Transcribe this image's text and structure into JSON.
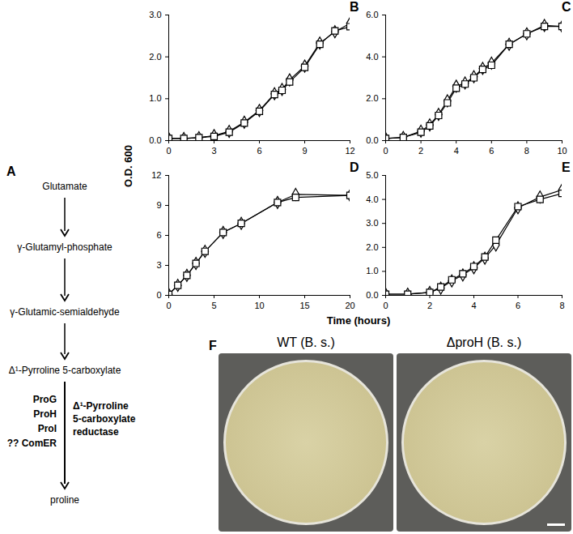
{
  "chart_data": [
    {
      "type": "line",
      "title": "B",
      "x": [
        0,
        1,
        2,
        3,
        4,
        5,
        6,
        7,
        7.5,
        8,
        9,
        10,
        11,
        12
      ],
      "series": [
        {
          "marker": "diamond",
          "color": "#000000",
          "values": [
            0.05,
            0.05,
            0.07,
            0.12,
            0.22,
            0.44,
            0.72,
            1.12,
            1.22,
            1.45,
            1.78,
            2.33,
            2.6,
            2.8
          ]
        },
        {
          "marker": "square",
          "color": "#000000",
          "values": [
            0.05,
            0.05,
            0.07,
            0.1,
            0.2,
            0.42,
            0.7,
            1.1,
            1.2,
            1.4,
            1.75,
            2.3,
            2.62,
            2.72
          ]
        }
      ],
      "xlim": [
        0,
        12
      ],
      "xticks": [
        0,
        3,
        6,
        9,
        12
      ],
      "ylim": [
        0,
        3
      ],
      "yticks": [
        0,
        1,
        2,
        3
      ]
    },
    {
      "type": "line",
      "title": "C",
      "x": [
        0,
        1,
        2,
        2.5,
        3,
        3.5,
        4,
        4.5,
        5,
        5.5,
        6,
        7,
        8,
        9,
        10
      ],
      "series": [
        {
          "marker": "diamond",
          "color": "#000000",
          "values": [
            0.1,
            0.15,
            0.45,
            0.75,
            1.25,
            1.9,
            2.6,
            2.75,
            3.05,
            3.45,
            3.7,
            4.6,
            5.1,
            5.5,
            5.45
          ]
        },
        {
          "marker": "square",
          "color": "#000000",
          "values": [
            0.1,
            0.15,
            0.4,
            0.7,
            1.2,
            1.8,
            2.5,
            2.7,
            3.0,
            3.4,
            3.6,
            4.6,
            5.1,
            5.45,
            5.45
          ]
        }
      ],
      "xlim": [
        0,
        10
      ],
      "xticks": [
        0,
        2,
        4,
        6,
        8,
        10
      ],
      "ylim": [
        0,
        6
      ],
      "yticks": [
        0,
        2,
        4,
        6
      ]
    },
    {
      "type": "line",
      "title": "D",
      "x": [
        0,
        1,
        2,
        3,
        4,
        6,
        8,
        12,
        14,
        20
      ],
      "series": [
        {
          "marker": "diamond",
          "color": "#000000",
          "values": [
            0.1,
            1.0,
            2.0,
            3.2,
            4.4,
            6.3,
            7.2,
            9.3,
            10.1,
            10.0
          ]
        },
        {
          "marker": "square",
          "color": "#000000",
          "values": [
            0.1,
            1.0,
            2.0,
            3.2,
            4.4,
            6.3,
            7.2,
            9.3,
            9.8,
            10.0
          ]
        }
      ],
      "xlim": [
        0,
        20
      ],
      "xticks": [
        0,
        5,
        10,
        15,
        20
      ],
      "ylim": [
        0,
        12
      ],
      "yticks": [
        0,
        3,
        6,
        9,
        12
      ]
    },
    {
      "type": "line",
      "title": "E",
      "x": [
        0,
        1,
        2,
        2.5,
        3,
        3.5,
        4,
        4.5,
        5,
        6,
        7,
        8
      ],
      "series": [
        {
          "marker": "diamond",
          "color": "#000000",
          "values": [
            0.05,
            0.05,
            0.12,
            0.3,
            0.6,
            0.85,
            1.15,
            1.55,
            2.1,
            3.65,
            4.1,
            4.4
          ]
        },
        {
          "marker": "square",
          "color": "#000000",
          "values": [
            0.05,
            0.05,
            0.12,
            0.35,
            0.65,
            0.9,
            1.2,
            1.6,
            2.3,
            3.7,
            4.0,
            4.25
          ]
        }
      ],
      "xlim": [
        0,
        8
      ],
      "xticks": [
        0,
        2,
        4,
        6,
        8
      ],
      "ylim": [
        0,
        5
      ],
      "yticks": [
        0,
        1,
        2,
        3,
        4,
        5
      ]
    }
  ],
  "x_label": "Time (hours)",
  "y_label": "O.D. 600",
  "diagram": {
    "title": "A",
    "nodes": [
      "Glutamate",
      "γ-Glutamyl-phosphate",
      "γ-Glutamic-semialdehyde",
      "Δ¹-Pyrroline 5-carboxylate",
      "proline"
    ],
    "enzymes": [
      "ProG",
      "ProH",
      "ProI",
      "?? ComER"
    ],
    "enzyme_name": [
      "Δ¹-Pyrroline",
      "5-carboxylate",
      "reductase"
    ]
  },
  "photos": {
    "title": "F",
    "labels": [
      "WT (B. s.)",
      "ΔproH (B. s.)"
    ]
  }
}
